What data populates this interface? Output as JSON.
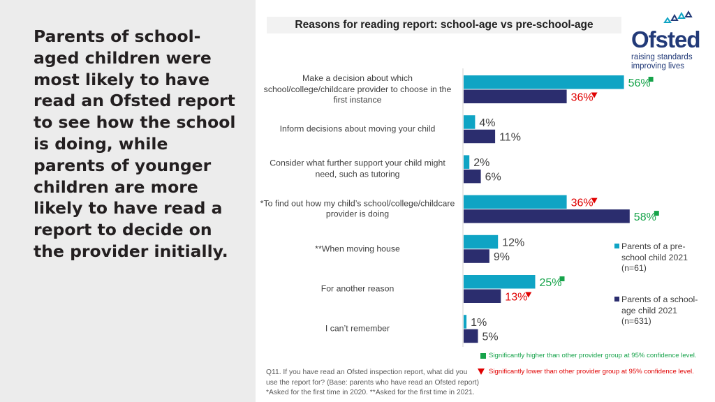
{
  "headline": "Parents of school-aged children were most likely to have read an Ofsted report to see how the school is doing, while parents of younger children are more likely to have read a report to decide on the provider initially.",
  "logo": {
    "name": "Ofsted",
    "tagline_line1": "raising standards",
    "tagline_line2": "improving lives",
    "color": "#223a78"
  },
  "chart_data": {
    "type": "bar",
    "orientation": "horizontal",
    "title": "Reasons for reading report: school-age vs pre-school-age",
    "categories": [
      "Make a decision about which school/college/childcare provider to choose in the first instance",
      "Inform decisions about moving your child",
      "Consider what further support your child might need, such as tutoring",
      "*To find out how my child’s school/college/childcare provider is doing",
      "**When moving house",
      "For another reason",
      "I can’t remember"
    ],
    "series": [
      {
        "name": "Parents of a pre-school child 2021 (n=61)",
        "color": "#0fa4c4",
        "values": [
          56,
          4,
          2,
          36,
          12,
          25,
          1
        ],
        "labels": [
          "56%",
          "4%",
          "2%",
          "36%",
          "12%",
          "25%",
          "1%"
        ],
        "significance": [
          "higher",
          "",
          "",
          "lower",
          "",
          "higher",
          ""
        ]
      },
      {
        "name": "Parents of a school-age child 2021 (n=631)",
        "color": "#2b2d6e",
        "values": [
          36,
          11,
          6,
          58,
          9,
          13,
          5
        ],
        "labels": [
          "36%",
          "11%",
          "6%",
          "58%",
          "9%",
          "13%",
          "5%"
        ],
        "significance": [
          "lower",
          "",
          "",
          "higher",
          "",
          "lower",
          ""
        ]
      }
    ],
    "xlim": [
      0,
      60
    ],
    "grid": false,
    "legend_position": "right",
    "significance_key": {
      "higher": {
        "text": "Significantly higher than other provider group at 95% confidence level.",
        "color": "#16a34a"
      },
      "lower": {
        "text": "Significantly lower than other provider group at 95% confidence level.",
        "color": "#e00000"
      }
    },
    "neutral_label_color": "#404040"
  },
  "legend": {
    "pre_school_line1": "Parents of a pre-",
    "pre_school_line2": "school child 2021",
    "pre_school_line3": "(n=61)",
    "school_age_line1": "Parents of a school-",
    "school_age_line2": "age child 2021",
    "school_age_line3": "(n=631)"
  },
  "footnote": {
    "line1": "Q11. If you have read an Ofsted inspection report, what did you",
    "line2": "use the report for? (Base: parents who have read an Ofsted report)",
    "line3": "*Asked for the first time in 2020. **Asked for the first time in 2021."
  }
}
